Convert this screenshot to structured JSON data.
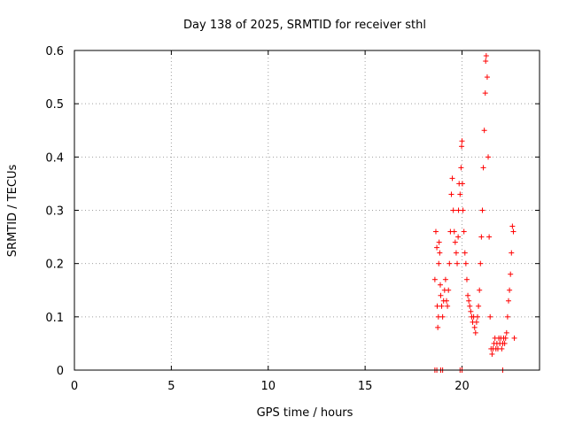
{
  "chart_data": {
    "type": "scatter",
    "title": "Day 138 of 2025, SRMTID for receiver sthl",
    "xlabel": "GPS time / hours",
    "ylabel": "SRMTID / TECUs",
    "xlim": [
      0,
      24
    ],
    "ylim": [
      0,
      0.6
    ],
    "xticks": [
      0,
      5,
      10,
      15,
      20
    ],
    "yticks": [
      0,
      0.1,
      0.2,
      0.3,
      0.4,
      0.5,
      0.6
    ],
    "xtick_labels": [
      "0",
      "5",
      "10",
      "15",
      "20"
    ],
    "ytick_labels": [
      "0",
      "0.1",
      "0.2",
      "0.3",
      "0.4",
      "0.5",
      "0.6"
    ],
    "grid": true,
    "marker": "+",
    "series": [
      {
        "name": "SRMTID",
        "color": "#ff0000",
        "points": [
          [
            18.6,
            0.0
          ],
          [
            18.7,
            0.0
          ],
          [
            18.9,
            0.0
          ],
          [
            19.0,
            0.0
          ],
          [
            19.9,
            0.0
          ],
          [
            20.0,
            0.0
          ],
          [
            22.1,
            0.0
          ],
          [
            18.6,
            0.17
          ],
          [
            18.65,
            0.26
          ],
          [
            18.7,
            0.23
          ],
          [
            18.72,
            0.12
          ],
          [
            18.75,
            0.08
          ],
          [
            18.78,
            0.1
          ],
          [
            18.8,
            0.2
          ],
          [
            18.82,
            0.24
          ],
          [
            18.85,
            0.22
          ],
          [
            18.88,
            0.16
          ],
          [
            18.9,
            0.14
          ],
          [
            18.95,
            0.12
          ],
          [
            19.0,
            0.1
          ],
          [
            19.05,
            0.13
          ],
          [
            19.1,
            0.15
          ],
          [
            19.15,
            0.17
          ],
          [
            19.2,
            0.13
          ],
          [
            19.25,
            0.12
          ],
          [
            19.3,
            0.15
          ],
          [
            19.35,
            0.2
          ],
          [
            19.4,
            0.26
          ],
          [
            19.45,
            0.33
          ],
          [
            19.5,
            0.36
          ],
          [
            19.55,
            0.3
          ],
          [
            19.6,
            0.26
          ],
          [
            19.65,
            0.24
          ],
          [
            19.7,
            0.22
          ],
          [
            19.75,
            0.2
          ],
          [
            19.8,
            0.25
          ],
          [
            19.82,
            0.3
          ],
          [
            19.85,
            0.35
          ],
          [
            19.9,
            0.33
          ],
          [
            19.95,
            0.38
          ],
          [
            19.98,
            0.42
          ],
          [
            20.0,
            0.43
          ],
          [
            20.02,
            0.35
          ],
          [
            20.05,
            0.3
          ],
          [
            20.1,
            0.26
          ],
          [
            20.15,
            0.22
          ],
          [
            20.2,
            0.2
          ],
          [
            20.25,
            0.17
          ],
          [
            20.3,
            0.14
          ],
          [
            20.35,
            0.13
          ],
          [
            20.4,
            0.12
          ],
          [
            20.45,
            0.11
          ],
          [
            20.5,
            0.1
          ],
          [
            20.55,
            0.09
          ],
          [
            20.6,
            0.1
          ],
          [
            20.65,
            0.08
          ],
          [
            20.7,
            0.07
          ],
          [
            20.75,
            0.09
          ],
          [
            20.8,
            0.1
          ],
          [
            20.85,
            0.12
          ],
          [
            20.9,
            0.15
          ],
          [
            20.95,
            0.2
          ],
          [
            21.0,
            0.25
          ],
          [
            21.05,
            0.3
          ],
          [
            21.1,
            0.38
          ],
          [
            21.15,
            0.45
          ],
          [
            21.2,
            0.52
          ],
          [
            21.22,
            0.58
          ],
          [
            21.25,
            0.59
          ],
          [
            21.3,
            0.55
          ],
          [
            21.35,
            0.4
          ],
          [
            21.4,
            0.25
          ],
          [
            21.45,
            0.1
          ],
          [
            21.5,
            0.04
          ],
          [
            21.55,
            0.03
          ],
          [
            21.6,
            0.04
          ],
          [
            21.65,
            0.05
          ],
          [
            21.7,
            0.06
          ],
          [
            21.75,
            0.04
          ],
          [
            21.8,
            0.05
          ],
          [
            21.85,
            0.04
          ],
          [
            21.9,
            0.06
          ],
          [
            21.95,
            0.05
          ],
          [
            22.0,
            0.06
          ],
          [
            22.05,
            0.04
          ],
          [
            22.1,
            0.05
          ],
          [
            22.15,
            0.06
          ],
          [
            22.2,
            0.05
          ],
          [
            22.25,
            0.06
          ],
          [
            22.3,
            0.07
          ],
          [
            22.35,
            0.1
          ],
          [
            22.4,
            0.13
          ],
          [
            22.45,
            0.15
          ],
          [
            22.5,
            0.18
          ],
          [
            22.55,
            0.22
          ],
          [
            22.6,
            0.27
          ],
          [
            22.65,
            0.26
          ],
          [
            22.7,
            0.06
          ]
        ]
      }
    ]
  }
}
